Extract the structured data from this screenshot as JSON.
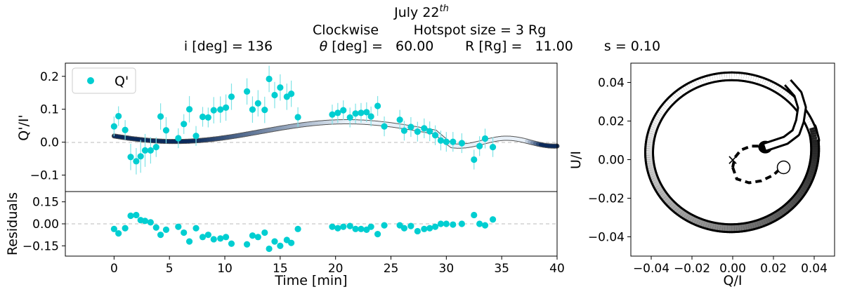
{
  "header": {
    "title_prefix": "July 22",
    "title_sup": "th",
    "line2_a": "Clockwise",
    "line2_b": "Hotspot size = 3 Rg",
    "incl": "i [deg] = 136",
    "theta_sym": "θ",
    "theta_rest": " [deg] =   60.00",
    "radius": "R [Rg] =   11.00",
    "s_val": "s = 0.10"
  },
  "colors": {
    "points": "#00CED1",
    "errorbar": "#7fe3e6",
    "model_dark": "#0b2a5b",
    "model_light": "#e8f0f8",
    "grid_dash": "#bbbbbb"
  },
  "chart_data": [
    {
      "id": "top",
      "type": "scatter",
      "ylabel": "Q'/I'",
      "legend": "Q'",
      "legend_position": "top-left",
      "xlim": [
        -4.4,
        40
      ],
      "ylim": [
        -0.15,
        0.24
      ],
      "yticks": [
        -0.1,
        0.0,
        0.1,
        0.2
      ],
      "ytick_labels": [
        "−0.1",
        "0.0",
        "0.1",
        "0.2"
      ],
      "points": [
        [
          0.0,
          0.048,
          0.03
        ],
        [
          0.4,
          0.079,
          0.03
        ],
        [
          1.0,
          0.037,
          0.03
        ],
        [
          1.5,
          -0.045,
          0.04
        ],
        [
          2.0,
          -0.058,
          0.04
        ],
        [
          2.4,
          -0.043,
          0.05
        ],
        [
          2.8,
          -0.025,
          0.05
        ],
        [
          3.3,
          -0.025,
          0.04
        ],
        [
          3.8,
          -0.015,
          0.03
        ],
        [
          4.2,
          0.078,
          0.04
        ],
        [
          4.7,
          0.036,
          0.04
        ],
        [
          5.8,
          0.012,
          0.03
        ],
        [
          6.3,
          0.055,
          0.03
        ],
        [
          6.8,
          0.1,
          0.04
        ],
        [
          7.4,
          0.019,
          0.03
        ],
        [
          8.0,
          0.077,
          0.03
        ],
        [
          8.5,
          0.075,
          0.03
        ],
        [
          9.0,
          0.097,
          0.04
        ],
        [
          9.6,
          0.099,
          0.04
        ],
        [
          10.1,
          0.105,
          0.04
        ],
        [
          10.6,
          0.138,
          0.04
        ],
        [
          12.0,
          0.154,
          0.04
        ],
        [
          12.5,
          0.099,
          0.04
        ],
        [
          13.0,
          0.118,
          0.04
        ],
        [
          13.6,
          0.098,
          0.04
        ],
        [
          14.0,
          0.192,
          0.04
        ],
        [
          14.5,
          0.143,
          0.04
        ],
        [
          15.0,
          0.166,
          0.04
        ],
        [
          15.6,
          0.138,
          0.04
        ],
        [
          16.0,
          0.147,
          0.04
        ],
        [
          16.6,
          0.076,
          0.03
        ],
        [
          19.7,
          0.084,
          0.03
        ],
        [
          20.2,
          0.089,
          0.03
        ],
        [
          20.7,
          0.097,
          0.03
        ],
        [
          21.3,
          0.075,
          0.03
        ],
        [
          21.8,
          0.087,
          0.03
        ],
        [
          22.3,
          0.089,
          0.03
        ],
        [
          22.8,
          0.091,
          0.03
        ],
        [
          23.2,
          0.078,
          0.03
        ],
        [
          23.8,
          0.11,
          0.03
        ],
        [
          24.4,
          0.048,
          0.03
        ],
        [
          25.8,
          0.068,
          0.03
        ],
        [
          26.2,
          0.035,
          0.03
        ],
        [
          26.8,
          0.046,
          0.03
        ],
        [
          27.4,
          0.032,
          0.03
        ],
        [
          28.0,
          0.042,
          0.03
        ],
        [
          28.5,
          0.033,
          0.03
        ],
        [
          29.0,
          0.021,
          0.03
        ],
        [
          29.5,
          0.005,
          0.03
        ],
        [
          30.0,
          0.001,
          0.03
        ],
        [
          30.6,
          0.001,
          0.03
        ],
        [
          31.4,
          -0.003,
          0.03
        ],
        [
          32.5,
          -0.053,
          0.03
        ],
        [
          33.0,
          -0.012,
          0.03
        ],
        [
          33.5,
          0.011,
          0.03
        ],
        [
          34.2,
          -0.015,
          0.03
        ]
      ]
    },
    {
      "id": "residuals",
      "type": "scatter",
      "ylabel": "Residuals",
      "xlabel": "Time [min]",
      "xlim": [
        -4.4,
        40
      ],
      "ylim": [
        -0.22,
        0.22
      ],
      "xticks": [
        0,
        5,
        10,
        15,
        20,
        25,
        30,
        35,
        40
      ],
      "xtick_labels": [
        "0",
        "5",
        "10",
        "15",
        "20",
        "25",
        "30",
        "35",
        "40"
      ],
      "yticks": [
        -0.15,
        0.0,
        0.15
      ],
      "ytick_labels": [
        "−0.15",
        "0.00",
        "0.15"
      ],
      "points": [
        [
          0.0,
          -0.035
        ],
        [
          0.4,
          -0.065
        ],
        [
          1.0,
          -0.03
        ],
        [
          1.5,
          0.055
        ],
        [
          2.0,
          0.06
        ],
        [
          2.4,
          0.025
        ],
        [
          2.8,
          0.02
        ],
        [
          3.3,
          0.01
        ],
        [
          3.8,
          -0.025
        ],
        [
          4.2,
          -0.075
        ],
        [
          4.7,
          -0.04
        ],
        [
          5.8,
          -0.02
        ],
        [
          6.3,
          -0.06
        ],
        [
          6.8,
          -0.12
        ],
        [
          7.4,
          -0.03
        ],
        [
          8.0,
          -0.09
        ],
        [
          8.5,
          -0.075
        ],
        [
          9.0,
          -0.105
        ],
        [
          9.6,
          -0.1
        ],
        [
          10.1,
          -0.09
        ],
        [
          10.6,
          -0.135
        ],
        [
          12.0,
          -0.14
        ],
        [
          12.5,
          -0.08
        ],
        [
          13.0,
          -0.09
        ],
        [
          13.6,
          -0.06
        ],
        [
          14.0,
          -0.17
        ],
        [
          14.5,
          -0.12
        ],
        [
          15.0,
          -0.15
        ],
        [
          15.6,
          -0.11
        ],
        [
          16.0,
          -0.13
        ],
        [
          16.6,
          -0.035
        ],
        [
          19.7,
          -0.02
        ],
        [
          20.2,
          -0.03
        ],
        [
          20.7,
          -0.02
        ],
        [
          21.3,
          -0.015
        ],
        [
          21.8,
          -0.035
        ],
        [
          22.3,
          -0.035
        ],
        [
          22.8,
          -0.04
        ],
        [
          23.2,
          -0.02
        ],
        [
          23.8,
          -0.07
        ],
        [
          24.4,
          -0.01
        ],
        [
          25.8,
          -0.01
        ],
        [
          26.2,
          -0.03
        ],
        [
          26.8,
          -0.015
        ],
        [
          27.4,
          -0.05
        ],
        [
          28.0,
          -0.035
        ],
        [
          28.5,
          -0.03
        ],
        [
          29.0,
          -0.02
        ],
        [
          29.5,
          0.0
        ],
        [
          30.0,
          0.0
        ],
        [
          30.6,
          -0.005
        ],
        [
          31.4,
          0.0
        ],
        [
          32.5,
          0.06
        ],
        [
          33.0,
          0.0
        ],
        [
          33.5,
          -0.01
        ],
        [
          34.2,
          0.03
        ]
      ]
    },
    {
      "id": "qu-plane",
      "type": "line",
      "xlabel": "Q/I",
      "ylabel": "U/I",
      "xlim": [
        -0.05,
        0.05
      ],
      "ylim": [
        -0.05,
        0.05
      ],
      "xticks": [
        -0.04,
        -0.02,
        0.0,
        0.02,
        0.04
      ],
      "xtick_labels": [
        "−0.04",
        "−0.02",
        "0.00",
        "0.02",
        "0.04"
      ],
      "yticks": [
        -0.04,
        -0.02,
        0.0,
        0.02,
        0.04
      ],
      "ytick_labels": [
        "−0.04",
        "−0.02",
        "0.00",
        "0.02",
        "0.04"
      ],
      "center_marker": [
        0.0,
        0.0
      ],
      "end_marker": [
        0.025,
        -0.004
      ]
    }
  ]
}
